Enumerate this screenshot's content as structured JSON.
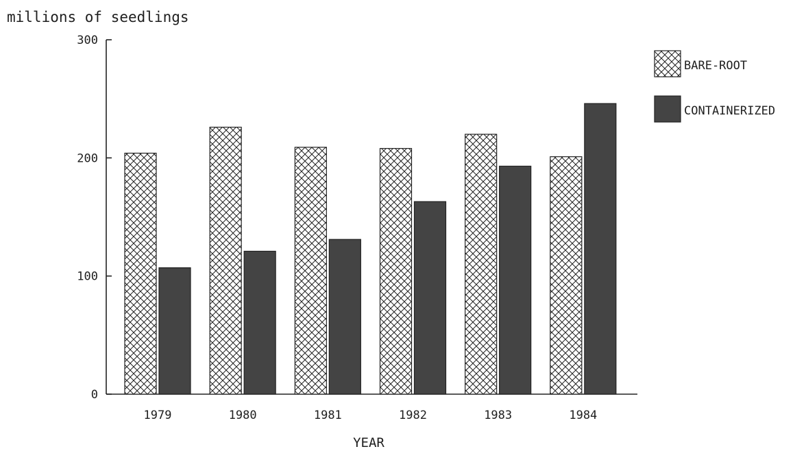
{
  "chart_data": {
    "type": "bar",
    "title": "",
    "xlabel": "YEAR",
    "ylabel": "millions of seedlings",
    "ylim": [
      0,
      300
    ],
    "yticks": [
      0,
      100,
      200,
      300
    ],
    "categories": [
      "1979",
      "1980",
      "1981",
      "1982",
      "1983",
      "1984"
    ],
    "series": [
      {
        "name": "BARE-ROOT",
        "pattern": "crosshatch",
        "color": "#ffffff",
        "values": [
          204,
          226,
          209,
          208,
          220,
          201
        ]
      },
      {
        "name": "CONTAINERIZED",
        "pattern": "solid",
        "color": "#444444",
        "values": [
          107,
          121,
          131,
          163,
          193,
          246
        ]
      }
    ],
    "legend": "right",
    "grid": false
  }
}
